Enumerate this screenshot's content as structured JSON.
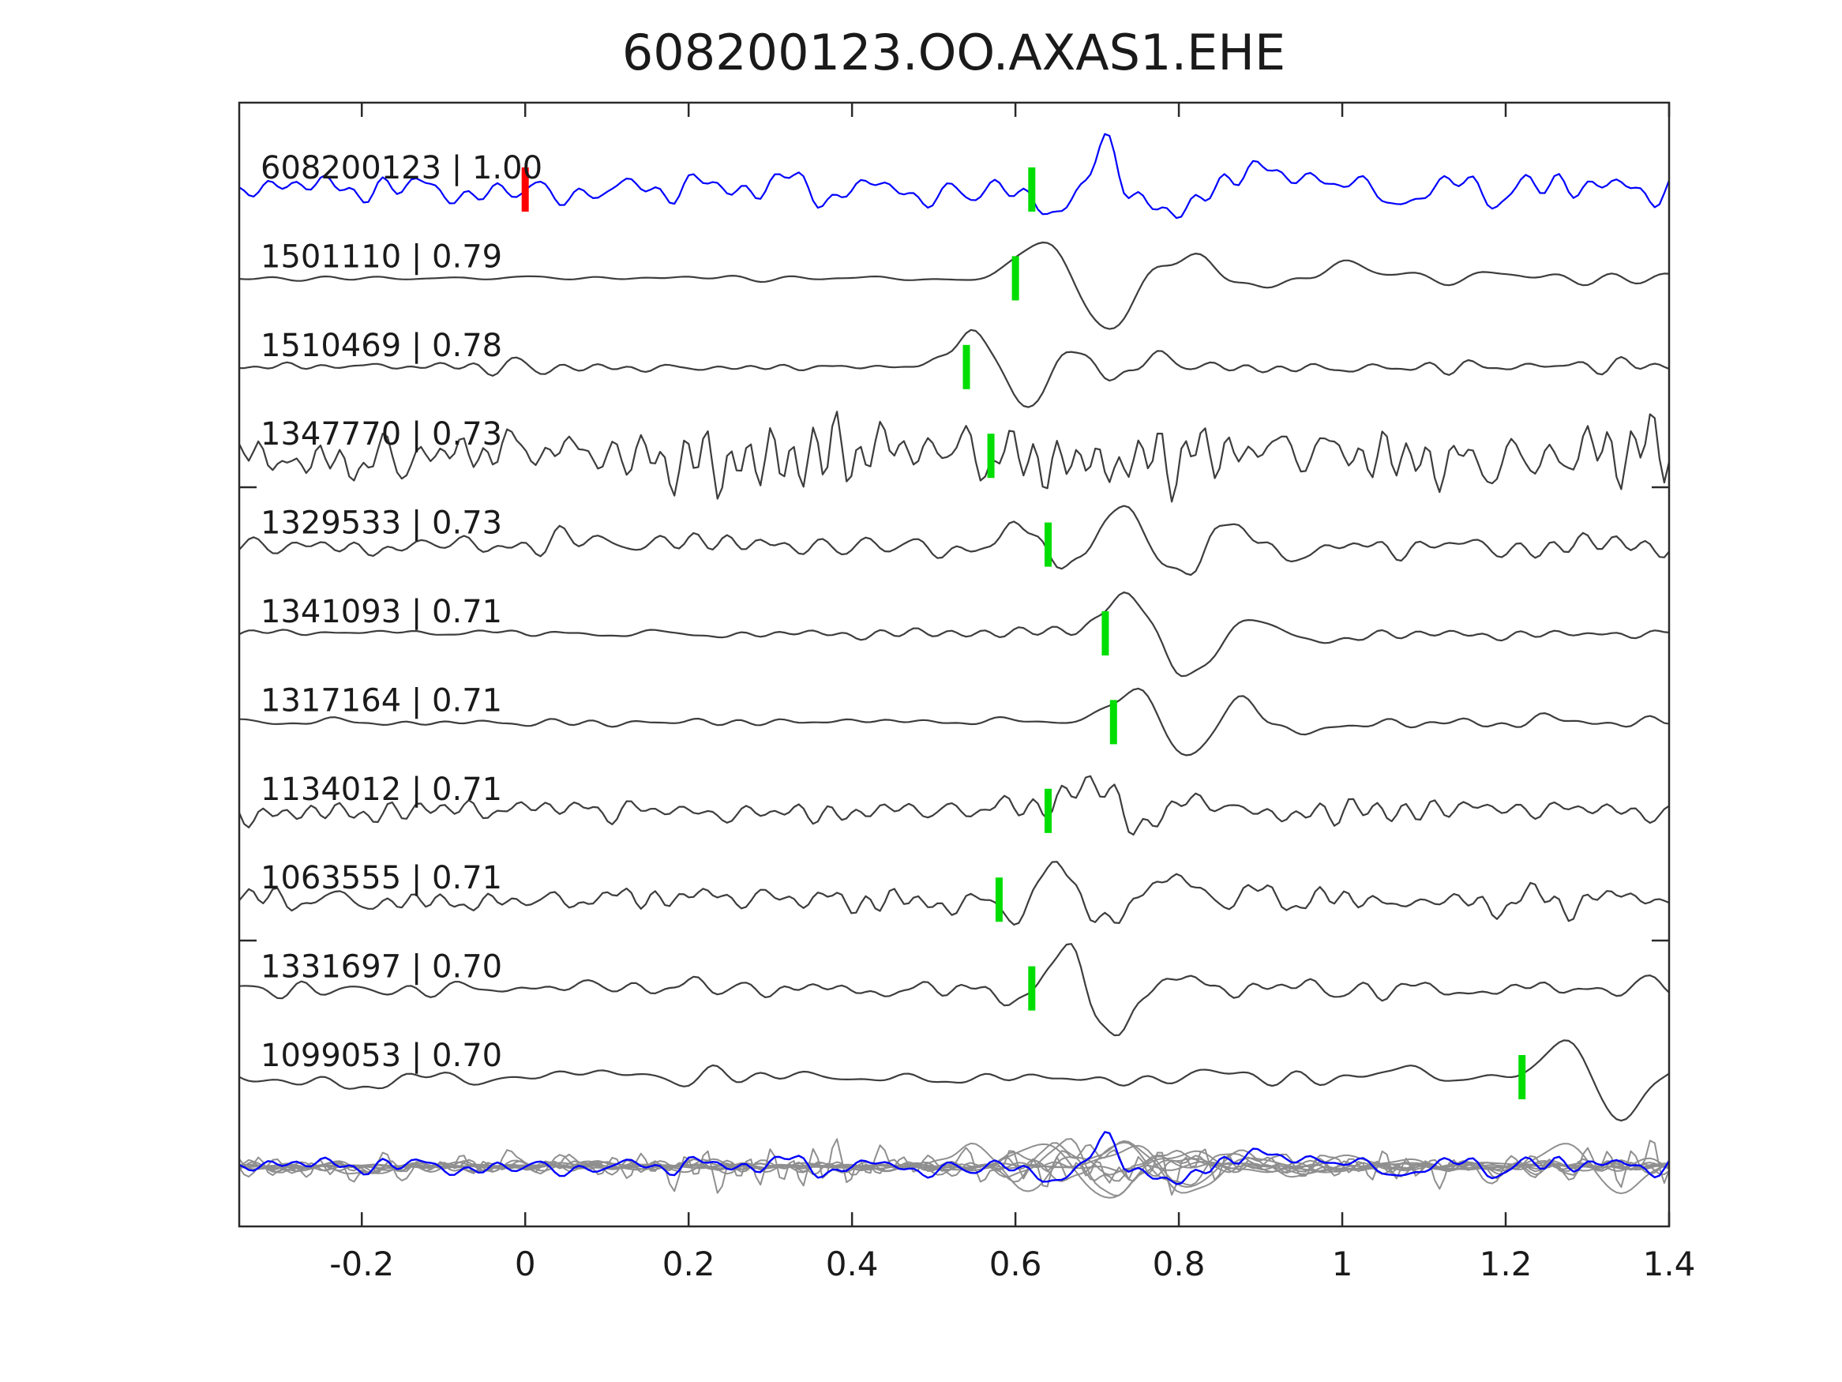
{
  "title": "608200123.OO.AXAS1.EHE",
  "chart_data": {
    "type": "line",
    "title": "608200123.OO.AXAS1.EHE",
    "xlabel": "",
    "ylabel": "",
    "xlim": [
      -0.35,
      1.4
    ],
    "grid": false,
    "x_ticks": [
      -0.2,
      0,
      0.2,
      0.4,
      0.6,
      0.8,
      1,
      1.2,
      1.4
    ],
    "x_tick_labels": [
      "-0.2",
      "0",
      "0.2",
      "0.4",
      "0.6",
      "0.8",
      "1",
      "1.2",
      "1.4"
    ],
    "colors": {
      "template_trace": "#0000ff",
      "detection_trace": "#3d3d3d",
      "overlay_trace": "#8f8f8f",
      "pick_marker": "#00dd00",
      "template_pick_marker": "#ff0000",
      "frame": "#2a2a2a",
      "text": "#1a1a1a"
    },
    "legend": "none",
    "description": "Stacked seismic waveform traces: template event (blue, top) and correlated detections (gray). Green bars mark pick times, red bar marks template zero time. Bottom row overlays all traces (gray) with the template in blue.",
    "traces": [
      {
        "id": "608200123",
        "correlation": "1.00",
        "label": "608200123 | 1.00",
        "pick_time": 0.62,
        "template_pick_time": 0.0,
        "is_template": true,
        "render": {
          "seed": 101,
          "cycles": 24,
          "noise_profile": [
            [
              -0.35,
              20
            ],
            [
              0.55,
              22
            ],
            [
              0.65,
              28
            ],
            [
              0.85,
              24
            ],
            [
              1.4,
              20
            ]
          ],
          "events": [
            [
              0.66,
              -30,
              0.035
            ],
            [
              0.705,
              48,
              0.032
            ],
            [
              0.78,
              -36,
              0.04
            ],
            [
              0.93,
              30,
              0.05
            ]
          ]
        }
      },
      {
        "id": "1501110",
        "correlation": "0.79",
        "label": "1501110 | 0.79",
        "pick_time": 0.6,
        "render": {
          "seed": 202,
          "cycles": 12,
          "noise_profile": [
            [
              -0.35,
              3
            ],
            [
              0.5,
              3
            ],
            [
              0.58,
              6
            ],
            [
              0.9,
              9
            ],
            [
              1.4,
              8
            ]
          ],
          "events": [
            [
              0.635,
              52,
              0.04
            ],
            [
              0.715,
              -60,
              0.05
            ],
            [
              0.8,
              30,
              0.06
            ],
            [
              0.88,
              -10,
              0.05
            ],
            [
              1.02,
              12,
              0.05
            ]
          ]
        }
      },
      {
        "id": "1510469",
        "correlation": "0.78",
        "label": "1510469 | 0.78",
        "pick_time": 0.54,
        "render": {
          "seed": 303,
          "cycles": 16,
          "noise_profile": [
            [
              -0.35,
              5
            ],
            [
              -0.08,
              6
            ],
            [
              0,
              13
            ],
            [
              0.06,
              6
            ],
            [
              0.5,
              4
            ],
            [
              0.7,
              8
            ],
            [
              1.4,
              9
            ]
          ],
          "events": [
            [
              0.55,
              46,
              0.035
            ],
            [
              0.615,
              -55,
              0.038
            ],
            [
              0.665,
              30,
              0.035
            ],
            [
              0.72,
              -18,
              0.04
            ],
            [
              0.77,
              15,
              0.04
            ]
          ]
        }
      },
      {
        "id": "1347770",
        "correlation": "0.73",
        "label": "1347770 | 0.73",
        "pick_time": 0.57,
        "render": {
          "seed": 404,
          "cycles": 27,
          "noise_profile": [
            [
              -0.35,
              38
            ],
            [
              0.3,
              42
            ],
            [
              0.55,
              46
            ],
            [
              0.8,
              40
            ],
            [
              1.1,
              40
            ],
            [
              1.3,
              48
            ],
            [
              1.4,
              44
            ]
          ],
          "events": []
        }
      },
      {
        "id": "1329533",
        "correlation": "0.73",
        "label": "1329533 | 0.73",
        "pick_time": 0.64,
        "render": {
          "seed": 505,
          "cycles": 18,
          "noise_profile": [
            [
              -0.35,
              14
            ],
            [
              0.6,
              15
            ],
            [
              0.85,
              16
            ],
            [
              1.4,
              15
            ]
          ],
          "events": [
            [
              0.61,
              20,
              0.03
            ],
            [
              0.665,
              -28,
              0.035
            ],
            [
              0.735,
              50,
              0.045
            ],
            [
              0.795,
              -55,
              0.045
            ],
            [
              0.86,
              35,
              0.04
            ],
            [
              0.93,
              -20,
              0.05
            ]
          ]
        }
      },
      {
        "id": "1341093",
        "correlation": "0.71",
        "label": "1341093 | 0.71",
        "pick_time": 0.71,
        "render": {
          "seed": 606,
          "cycles": 14,
          "noise_profile": [
            [
              -0.35,
              6
            ],
            [
              0.6,
              6
            ],
            [
              0.85,
              9
            ],
            [
              1.4,
              9
            ]
          ],
          "events": [
            [
              0.74,
              50,
              0.045
            ],
            [
              0.81,
              -58,
              0.05
            ],
            [
              0.885,
              28,
              0.04
            ],
            [
              0.95,
              -12,
              0.05
            ]
          ]
        }
      },
      {
        "id": "1317164",
        "correlation": "0.71",
        "label": "1317164 | 0.71",
        "pick_time": 0.72,
        "render": {
          "seed": 707,
          "cycles": 13,
          "noise_profile": [
            [
              -0.35,
              5
            ],
            [
              0.65,
              5
            ],
            [
              0.9,
              9
            ],
            [
              1.4,
              8
            ]
          ],
          "events": [
            [
              0.755,
              52,
              0.045
            ],
            [
              0.805,
              -58,
              0.045
            ],
            [
              0.875,
              30,
              0.05
            ],
            [
              0.95,
              -14,
              0.05
            ]
          ]
        }
      },
      {
        "id": "1134012",
        "correlation": "0.71",
        "label": "1134012 | 0.71",
        "pick_time": 0.64,
        "render": {
          "seed": 808,
          "cycles": 21,
          "noise_profile": [
            [
              -0.35,
              16
            ],
            [
              1.4,
              15
            ]
          ],
          "events": [
            [
              0.7,
              44,
              0.04
            ],
            [
              0.748,
              -40,
              0.04
            ],
            [
              0.8,
              22,
              0.05
            ]
          ]
        }
      },
      {
        "id": "1063555",
        "correlation": "0.71",
        "label": "1063555 | 0.71",
        "pick_time": 0.58,
        "render": {
          "seed": 909,
          "cycles": 20,
          "noise_profile": [
            [
              -0.35,
              16
            ],
            [
              1.4,
              16
            ]
          ],
          "events": [
            [
              0.6,
              -18,
              0.03
            ],
            [
              0.655,
              50,
              0.035
            ],
            [
              0.705,
              -42,
              0.035
            ],
            [
              0.78,
              20,
              0.05
            ]
          ]
        }
      },
      {
        "id": "1331697",
        "correlation": "0.70",
        "label": "1331697 | 0.70",
        "pick_time": 0.62,
        "render": {
          "seed": 1010,
          "cycles": 19,
          "noise_profile": [
            [
              -0.35,
              11
            ],
            [
              1.4,
              11
            ]
          ],
          "events": [
            [
              0.615,
              -20,
              0.025
            ],
            [
              0.662,
              55,
              0.032
            ],
            [
              0.72,
              -58,
              0.04
            ],
            [
              0.78,
              12,
              0.04
            ]
          ]
        }
      },
      {
        "id": "1099053",
        "correlation": "0.70",
        "label": "1099053 | 0.70",
        "pick_time": 1.22,
        "render": {
          "seed": 1111,
          "cycles": 13,
          "noise_profile": [
            [
              -0.35,
              11
            ],
            [
              1.15,
              11
            ],
            [
              1.25,
              6
            ],
            [
              1.4,
              10
            ]
          ],
          "events": [
            [
              -0.18,
              -18,
              0.03
            ],
            [
              1.285,
              58,
              0.045
            ],
            [
              1.333,
              -72,
              0.045
            ],
            [
              1.39,
              22,
              0.03
            ]
          ]
        }
      }
    ],
    "layout": {
      "plot_left": 303,
      "plot_top": 130,
      "plot_right": 2114,
      "plot_bottom": 1553,
      "row_start": 240,
      "row_pitch": 112.4,
      "overlay_center": 1477,
      "y_tick_positions": [
        617,
        1191
      ],
      "label_x": 330,
      "pick_marker_height": 56,
      "pick_marker_width": 9,
      "samples": 300,
      "overlay_scale": 0.62
    }
  }
}
